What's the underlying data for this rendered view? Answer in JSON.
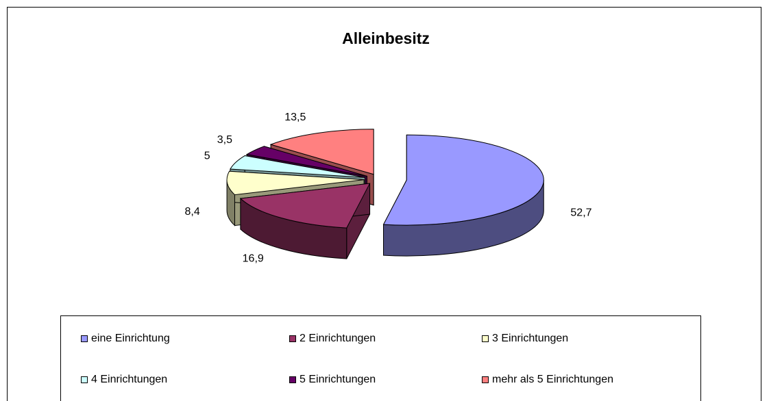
{
  "chart_data": {
    "type": "pie",
    "title": "Alleinbesitz",
    "categories": [
      "eine Einrichtung",
      "2 Einrichtungen",
      "3 Einrichtungen",
      "4 Einrichtungen",
      "5 Einrichtungen",
      "mehr als 5 Einrichtungen"
    ],
    "values": [
      52.7,
      16.9,
      8.4,
      5,
      3.5,
      13.5
    ],
    "value_labels": [
      "52,7",
      "16,9",
      "8,4",
      "5",
      "3,5",
      "13,5"
    ],
    "colors": [
      "#9999ff",
      "#993366",
      "#ffffcc",
      "#ccffff",
      "#660066",
      "#ff8080"
    ]
  }
}
